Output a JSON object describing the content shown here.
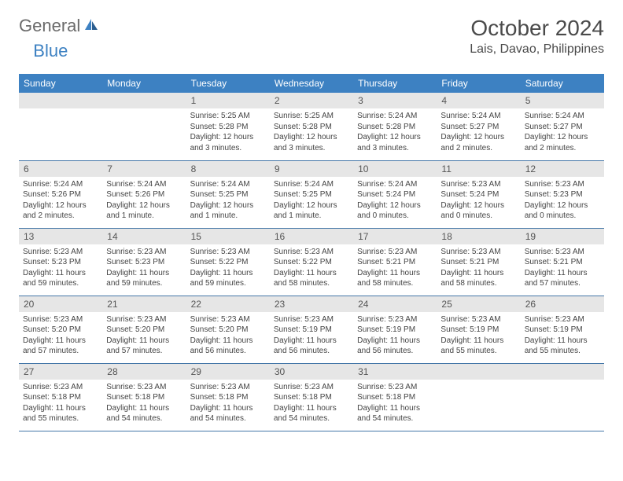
{
  "logo": {
    "text1": "General",
    "text2": "Blue"
  },
  "title": {
    "month": "October 2024",
    "location": "Lais, Davao, Philippines"
  },
  "colors": {
    "header_bg": "#3d81c2",
    "header_text": "#ffffff",
    "daynum_bg": "#e6e6e6",
    "cell_border": "#4577a8",
    "logo_gray": "#6b6b6b",
    "logo_blue": "#3d81c2"
  },
  "fonts": {
    "title_size": 28,
    "location_size": 16,
    "dayhead_size": 12,
    "daynum_size": 12,
    "content_size": 10
  },
  "daynames": [
    "Sunday",
    "Monday",
    "Tuesday",
    "Wednesday",
    "Thursday",
    "Friday",
    "Saturday"
  ],
  "weeks": [
    [
      null,
      null,
      {
        "n": "1",
        "sr": "Sunrise: 5:25 AM",
        "ss": "Sunset: 5:28 PM",
        "dl": "Daylight: 12 hours and 3 minutes."
      },
      {
        "n": "2",
        "sr": "Sunrise: 5:25 AM",
        "ss": "Sunset: 5:28 PM",
        "dl": "Daylight: 12 hours and 3 minutes."
      },
      {
        "n": "3",
        "sr": "Sunrise: 5:24 AM",
        "ss": "Sunset: 5:28 PM",
        "dl": "Daylight: 12 hours and 3 minutes."
      },
      {
        "n": "4",
        "sr": "Sunrise: 5:24 AM",
        "ss": "Sunset: 5:27 PM",
        "dl": "Daylight: 12 hours and 2 minutes."
      },
      {
        "n": "5",
        "sr": "Sunrise: 5:24 AM",
        "ss": "Sunset: 5:27 PM",
        "dl": "Daylight: 12 hours and 2 minutes."
      }
    ],
    [
      {
        "n": "6",
        "sr": "Sunrise: 5:24 AM",
        "ss": "Sunset: 5:26 PM",
        "dl": "Daylight: 12 hours and 2 minutes."
      },
      {
        "n": "7",
        "sr": "Sunrise: 5:24 AM",
        "ss": "Sunset: 5:26 PM",
        "dl": "Daylight: 12 hours and 1 minute."
      },
      {
        "n": "8",
        "sr": "Sunrise: 5:24 AM",
        "ss": "Sunset: 5:25 PM",
        "dl": "Daylight: 12 hours and 1 minute."
      },
      {
        "n": "9",
        "sr": "Sunrise: 5:24 AM",
        "ss": "Sunset: 5:25 PM",
        "dl": "Daylight: 12 hours and 1 minute."
      },
      {
        "n": "10",
        "sr": "Sunrise: 5:24 AM",
        "ss": "Sunset: 5:24 PM",
        "dl": "Daylight: 12 hours and 0 minutes."
      },
      {
        "n": "11",
        "sr": "Sunrise: 5:23 AM",
        "ss": "Sunset: 5:24 PM",
        "dl": "Daylight: 12 hours and 0 minutes."
      },
      {
        "n": "12",
        "sr": "Sunrise: 5:23 AM",
        "ss": "Sunset: 5:23 PM",
        "dl": "Daylight: 12 hours and 0 minutes."
      }
    ],
    [
      {
        "n": "13",
        "sr": "Sunrise: 5:23 AM",
        "ss": "Sunset: 5:23 PM",
        "dl": "Daylight: 11 hours and 59 minutes."
      },
      {
        "n": "14",
        "sr": "Sunrise: 5:23 AM",
        "ss": "Sunset: 5:23 PM",
        "dl": "Daylight: 11 hours and 59 minutes."
      },
      {
        "n": "15",
        "sr": "Sunrise: 5:23 AM",
        "ss": "Sunset: 5:22 PM",
        "dl": "Daylight: 11 hours and 59 minutes."
      },
      {
        "n": "16",
        "sr": "Sunrise: 5:23 AM",
        "ss": "Sunset: 5:22 PM",
        "dl": "Daylight: 11 hours and 58 minutes."
      },
      {
        "n": "17",
        "sr": "Sunrise: 5:23 AM",
        "ss": "Sunset: 5:21 PM",
        "dl": "Daylight: 11 hours and 58 minutes."
      },
      {
        "n": "18",
        "sr": "Sunrise: 5:23 AM",
        "ss": "Sunset: 5:21 PM",
        "dl": "Daylight: 11 hours and 58 minutes."
      },
      {
        "n": "19",
        "sr": "Sunrise: 5:23 AM",
        "ss": "Sunset: 5:21 PM",
        "dl": "Daylight: 11 hours and 57 minutes."
      }
    ],
    [
      {
        "n": "20",
        "sr": "Sunrise: 5:23 AM",
        "ss": "Sunset: 5:20 PM",
        "dl": "Daylight: 11 hours and 57 minutes."
      },
      {
        "n": "21",
        "sr": "Sunrise: 5:23 AM",
        "ss": "Sunset: 5:20 PM",
        "dl": "Daylight: 11 hours and 57 minutes."
      },
      {
        "n": "22",
        "sr": "Sunrise: 5:23 AM",
        "ss": "Sunset: 5:20 PM",
        "dl": "Daylight: 11 hours and 56 minutes."
      },
      {
        "n": "23",
        "sr": "Sunrise: 5:23 AM",
        "ss": "Sunset: 5:19 PM",
        "dl": "Daylight: 11 hours and 56 minutes."
      },
      {
        "n": "24",
        "sr": "Sunrise: 5:23 AM",
        "ss": "Sunset: 5:19 PM",
        "dl": "Daylight: 11 hours and 56 minutes."
      },
      {
        "n": "25",
        "sr": "Sunrise: 5:23 AM",
        "ss": "Sunset: 5:19 PM",
        "dl": "Daylight: 11 hours and 55 minutes."
      },
      {
        "n": "26",
        "sr": "Sunrise: 5:23 AM",
        "ss": "Sunset: 5:19 PM",
        "dl": "Daylight: 11 hours and 55 minutes."
      }
    ],
    [
      {
        "n": "27",
        "sr": "Sunrise: 5:23 AM",
        "ss": "Sunset: 5:18 PM",
        "dl": "Daylight: 11 hours and 55 minutes."
      },
      {
        "n": "28",
        "sr": "Sunrise: 5:23 AM",
        "ss": "Sunset: 5:18 PM",
        "dl": "Daylight: 11 hours and 54 minutes."
      },
      {
        "n": "29",
        "sr": "Sunrise: 5:23 AM",
        "ss": "Sunset: 5:18 PM",
        "dl": "Daylight: 11 hours and 54 minutes."
      },
      {
        "n": "30",
        "sr": "Sunrise: 5:23 AM",
        "ss": "Sunset: 5:18 PM",
        "dl": "Daylight: 11 hours and 54 minutes."
      },
      {
        "n": "31",
        "sr": "Sunrise: 5:23 AM",
        "ss": "Sunset: 5:18 PM",
        "dl": "Daylight: 11 hours and 54 minutes."
      },
      null,
      null
    ]
  ]
}
